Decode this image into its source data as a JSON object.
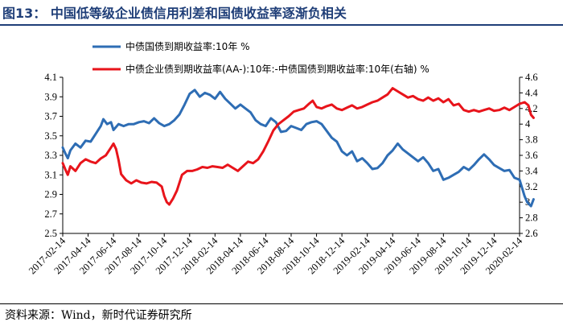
{
  "figure": {
    "title": "图13： 中国低等级企业债信用利差和国债收益率逐渐负相关",
    "source": "资料来源：Wind，新时代证券研究所"
  },
  "chart_data": {
    "type": "line",
    "x_labels": [
      "2017-02-14",
      "2017-04-14",
      "2017-06-14",
      "2017-08-14",
      "2017-10-14",
      "2017-12-14",
      "2018-02-14",
      "2018-04-14",
      "2018-06-14",
      "2018-08-14",
      "2018-10-14",
      "2018-12-14",
      "2019-02-14",
      "2019-04-14",
      "2019-06-14",
      "2019-08-14",
      "2019-10-14",
      "2019-12-14",
      "2020-02-14"
    ],
    "y_left": {
      "min": 2.5,
      "max": 4.1,
      "step": 0.2,
      "ticks": [
        "4.1",
        "3.9",
        "3.7",
        "3.5",
        "3.3",
        "3.1",
        "2.9",
        "2.7",
        "2.5"
      ]
    },
    "y_right": {
      "min": 2.6,
      "max": 4.6,
      "step": 0.2,
      "ticks": [
        "4.6",
        "4.4",
        "4.2",
        "4",
        "3.8",
        "3.6",
        "3.4",
        "3.2",
        "3",
        "2.8",
        "2.6"
      ]
    },
    "series": [
      {
        "name": "中债国债到期收益率:10年 %",
        "color": "#2e6db4",
        "axis": "left",
        "points": [
          [
            0,
            3.38
          ],
          [
            0.1,
            3.32
          ],
          [
            0.2,
            3.27
          ],
          [
            0.3,
            3.35
          ],
          [
            0.5,
            3.42
          ],
          [
            0.7,
            3.38
          ],
          [
            0.9,
            3.45
          ],
          [
            1.1,
            3.44
          ],
          [
            1.3,
            3.52
          ],
          [
            1.5,
            3.6
          ],
          [
            1.6,
            3.67
          ],
          [
            1.75,
            3.62
          ],
          [
            1.9,
            3.64
          ],
          [
            2.0,
            3.56
          ],
          [
            2.2,
            3.62
          ],
          [
            2.4,
            3.6
          ],
          [
            2.6,
            3.62
          ],
          [
            2.8,
            3.62
          ],
          [
            3.0,
            3.64
          ],
          [
            3.2,
            3.65
          ],
          [
            3.4,
            3.63
          ],
          [
            3.6,
            3.68
          ],
          [
            3.8,
            3.63
          ],
          [
            4.0,
            3.6
          ],
          [
            4.2,
            3.62
          ],
          [
            4.4,
            3.66
          ],
          [
            4.6,
            3.72
          ],
          [
            4.8,
            3.82
          ],
          [
            5.0,
            3.93
          ],
          [
            5.2,
            3.97
          ],
          [
            5.4,
            3.9
          ],
          [
            5.6,
            3.94
          ],
          [
            5.8,
            3.92
          ],
          [
            6.0,
            3.88
          ],
          [
            6.2,
            3.95
          ],
          [
            6.4,
            3.88
          ],
          [
            6.6,
            3.83
          ],
          [
            6.8,
            3.78
          ],
          [
            7.0,
            3.82
          ],
          [
            7.2,
            3.78
          ],
          [
            7.4,
            3.74
          ],
          [
            7.6,
            3.66
          ],
          [
            7.8,
            3.62
          ],
          [
            8.0,
            3.6
          ],
          [
            8.2,
            3.68
          ],
          [
            8.4,
            3.64
          ],
          [
            8.6,
            3.54
          ],
          [
            8.8,
            3.55
          ],
          [
            9.0,
            3.6
          ],
          [
            9.2,
            3.58
          ],
          [
            9.4,
            3.56
          ],
          [
            9.6,
            3.62
          ],
          [
            9.8,
            3.64
          ],
          [
            10.0,
            3.65
          ],
          [
            10.2,
            3.62
          ],
          [
            10.4,
            3.55
          ],
          [
            10.6,
            3.48
          ],
          [
            10.8,
            3.44
          ],
          [
            11.0,
            3.34
          ],
          [
            11.2,
            3.3
          ],
          [
            11.4,
            3.34
          ],
          [
            11.6,
            3.24
          ],
          [
            11.8,
            3.27
          ],
          [
            12.0,
            3.22
          ],
          [
            12.2,
            3.16
          ],
          [
            12.4,
            3.17
          ],
          [
            12.6,
            3.22
          ],
          [
            12.8,
            3.3
          ],
          [
            13.0,
            3.35
          ],
          [
            13.2,
            3.42
          ],
          [
            13.4,
            3.36
          ],
          [
            13.6,
            3.32
          ],
          [
            13.8,
            3.28
          ],
          [
            14.0,
            3.24
          ],
          [
            14.2,
            3.28
          ],
          [
            14.4,
            3.22
          ],
          [
            14.6,
            3.14
          ],
          [
            14.8,
            3.16
          ],
          [
            15.0,
            3.05
          ],
          [
            15.2,
            3.07
          ],
          [
            15.4,
            3.1
          ],
          [
            15.6,
            3.13
          ],
          [
            15.8,
            3.18
          ],
          [
            16.0,
            3.15
          ],
          [
            16.2,
            3.2
          ],
          [
            16.4,
            3.26
          ],
          [
            16.6,
            3.31
          ],
          [
            16.8,
            3.26
          ],
          [
            17.0,
            3.2
          ],
          [
            17.2,
            3.17
          ],
          [
            17.4,
            3.14
          ],
          [
            17.6,
            3.15
          ],
          [
            17.8,
            3.07
          ],
          [
            18.0,
            3.05
          ],
          [
            18.2,
            2.88
          ],
          [
            18.3,
            2.82
          ],
          [
            18.45,
            2.78
          ],
          [
            18.55,
            2.85
          ]
        ]
      },
      {
        "name": "中债企业债到期收益率(AA-):10年:-中债国债到期收益率:10年(右轴) %",
        "color": "#e8141b",
        "axis": "right",
        "points": [
          [
            0,
            3.5
          ],
          [
            0.1,
            3.42
          ],
          [
            0.2,
            3.35
          ],
          [
            0.3,
            3.46
          ],
          [
            0.5,
            3.4
          ],
          [
            0.7,
            3.5
          ],
          [
            0.9,
            3.55
          ],
          [
            1.1,
            3.52
          ],
          [
            1.3,
            3.5
          ],
          [
            1.5,
            3.56
          ],
          [
            1.7,
            3.6
          ],
          [
            1.9,
            3.7
          ],
          [
            2.0,
            3.75
          ],
          [
            2.1,
            3.68
          ],
          [
            2.2,
            3.54
          ],
          [
            2.3,
            3.36
          ],
          [
            2.5,
            3.28
          ],
          [
            2.7,
            3.24
          ],
          [
            2.9,
            3.28
          ],
          [
            3.1,
            3.25
          ],
          [
            3.3,
            3.24
          ],
          [
            3.5,
            3.26
          ],
          [
            3.7,
            3.25
          ],
          [
            3.9,
            3.2
          ],
          [
            4.0,
            3.08
          ],
          [
            4.1,
            3.0
          ],
          [
            4.2,
            2.97
          ],
          [
            4.35,
            3.05
          ],
          [
            4.5,
            3.15
          ],
          [
            4.7,
            3.35
          ],
          [
            4.9,
            3.4
          ],
          [
            5.1,
            3.4
          ],
          [
            5.3,
            3.42
          ],
          [
            5.5,
            3.45
          ],
          [
            5.7,
            3.44
          ],
          [
            5.9,
            3.46
          ],
          [
            6.1,
            3.45
          ],
          [
            6.3,
            3.44
          ],
          [
            6.5,
            3.48
          ],
          [
            6.7,
            3.44
          ],
          [
            6.9,
            3.4
          ],
          [
            7.1,
            3.46
          ],
          [
            7.3,
            3.52
          ],
          [
            7.5,
            3.5
          ],
          [
            7.7,
            3.55
          ],
          [
            7.9,
            3.65
          ],
          [
            8.1,
            3.78
          ],
          [
            8.3,
            3.92
          ],
          [
            8.5,
            4.0
          ],
          [
            8.7,
            4.05
          ],
          [
            8.9,
            4.1
          ],
          [
            9.1,
            4.16
          ],
          [
            9.3,
            4.18
          ],
          [
            9.5,
            4.2
          ],
          [
            9.7,
            4.26
          ],
          [
            9.85,
            4.3
          ],
          [
            10.0,
            4.22
          ],
          [
            10.2,
            4.2
          ],
          [
            10.4,
            4.23
          ],
          [
            10.6,
            4.25
          ],
          [
            10.8,
            4.2
          ],
          [
            11.0,
            4.18
          ],
          [
            11.2,
            4.21
          ],
          [
            11.4,
            4.24
          ],
          [
            11.6,
            4.2
          ],
          [
            11.8,
            4.22
          ],
          [
            12.0,
            4.25
          ],
          [
            12.2,
            4.28
          ],
          [
            12.4,
            4.3
          ],
          [
            12.6,
            4.34
          ],
          [
            12.8,
            4.38
          ],
          [
            13.0,
            4.46
          ],
          [
            13.2,
            4.42
          ],
          [
            13.4,
            4.38
          ],
          [
            13.6,
            4.34
          ],
          [
            13.8,
            4.36
          ],
          [
            14.0,
            4.32
          ],
          [
            14.2,
            4.3
          ],
          [
            14.4,
            4.34
          ],
          [
            14.6,
            4.3
          ],
          [
            14.8,
            4.33
          ],
          [
            15.0,
            4.28
          ],
          [
            15.2,
            4.32
          ],
          [
            15.4,
            4.24
          ],
          [
            15.6,
            4.26
          ],
          [
            15.8,
            4.18
          ],
          [
            16.0,
            4.16
          ],
          [
            16.2,
            4.18
          ],
          [
            16.4,
            4.16
          ],
          [
            16.6,
            4.18
          ],
          [
            16.8,
            4.2
          ],
          [
            17.0,
            4.17
          ],
          [
            17.2,
            4.18
          ],
          [
            17.4,
            4.21
          ],
          [
            17.6,
            4.18
          ],
          [
            17.8,
            4.22
          ],
          [
            18.0,
            4.26
          ],
          [
            18.2,
            4.28
          ],
          [
            18.35,
            4.24
          ],
          [
            18.45,
            4.12
          ],
          [
            18.55,
            4.08
          ]
        ]
      }
    ]
  }
}
